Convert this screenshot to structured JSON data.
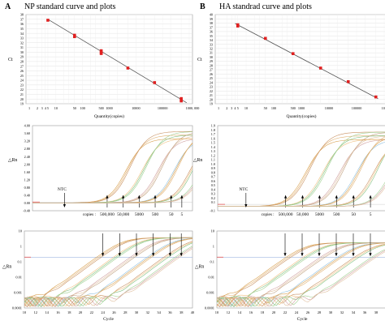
{
  "panels": [
    {
      "letter": "A",
      "title": "NP  standard curve and plots",
      "std_ylabel": "Ct",
      "std_xlabel": "Quantity(copies)",
      "std_xticks": [
        "1",
        "2",
        "3",
        "4",
        "5",
        "10",
        "20",
        "30",
        "50",
        "100",
        "200",
        "300",
        "500",
        "1000",
        "2000",
        "5000",
        "10000",
        "20000",
        "50000",
        "100000",
        "200000",
        "500000",
        "1000, 000"
      ],
      "lin_ylabel": "△Rn",
      "ntc_label": "NTC",
      "copies_label": "copies :",
      "log_ylabel": "△Rn",
      "cycle_label": "Cycle"
    },
    {
      "letter": "B",
      "title": "HA standrad curve and plots",
      "std_ylabel": "Ct",
      "std_xlabel": "Quantity(copies)",
      "std_xticks": [
        "1",
        "2",
        "3",
        "4",
        "5",
        "10",
        "20",
        "30",
        "50",
        "100",
        "200",
        "300",
        "500",
        "1000",
        "2000",
        "5000",
        "10000",
        "20000",
        "50000",
        "100000",
        "200000",
        "500000",
        "1000000"
      ],
      "lin_ylabel": "△Rn",
      "ntc_label": "NTC",
      "copies_label": "copies :",
      "log_ylabel": "△Rn",
      "cycle_label": "Cycle"
    }
  ],
  "colors": {
    "std_point": "#e02020",
    "fit_line": "#555555",
    "threshold": "#e05050",
    "curve_palette": [
      "#d8a050",
      "#e0b070",
      "#c89060",
      "#f0c080",
      "#80c080",
      "#a0d090",
      "#d0a0a0",
      "#e0c0a0",
      "#c0a080",
      "#90c0e0"
    ]
  },
  "chart_data": [
    {
      "type": "scatter",
      "title": "NP  standard curve and plots",
      "xlabel": "Quantity(copies)",
      "ylabel": "Ct",
      "xscale": "log",
      "xlim": [
        1,
        1000000
      ],
      "ylim": [
        19,
        38
      ],
      "yticks": [
        19,
        20,
        21,
        22,
        23,
        24,
        25,
        26,
        27,
        28,
        29,
        30,
        31,
        32,
        33,
        34,
        35,
        36,
        37,
        38
      ],
      "points": [
        {
          "x": 5,
          "y": 36.8
        },
        {
          "x": 50,
          "y": 33.6
        },
        {
          "x": 50,
          "y": 33.3
        },
        {
          "x": 500,
          "y": 30.3
        },
        {
          "x": 500,
          "y": 29.9
        },
        {
          "x": 500,
          "y": 29.7
        },
        {
          "x": 5000,
          "y": 26.6
        },
        {
          "x": 50000,
          "y": 23.5
        },
        {
          "x": 500000,
          "y": 20.1
        },
        {
          "x": 500000,
          "y": 19.6
        }
      ],
      "fit": [
        {
          "x": 5,
          "y": 37.0
        },
        {
          "x": 800000,
          "y": 19.2
        }
      ],
      "grid": true
    },
    {
      "type": "line",
      "title": "",
      "ylabel": "△Rn",
      "ylim": [
        -0.4,
        4.0
      ],
      "yticks": [
        -0.4,
        0.0,
        0.4,
        0.8,
        1.2,
        1.6,
        2.0,
        2.4,
        2.8,
        3.2,
        3.6,
        4.0
      ],
      "annotations": [
        {
          "label": "500,000",
          "x": 24
        },
        {
          "label": "50,000",
          "x": 27
        },
        {
          "label": "5000",
          "x": 30
        },
        {
          "label": "500",
          "x": 33
        },
        {
          "label": "50",
          "x": 36
        },
        {
          "label": "5",
          "x": 38
        }
      ],
      "ntc_x": 16
    },
    {
      "type": "line",
      "title": "",
      "xlabel": "Cycle",
      "ylabel": "△Rn",
      "yscale": "log",
      "ylim": [
        0.0001,
        10
      ],
      "yticks": [
        "10",
        "1",
        "0.1",
        "0.01",
        "0.001",
        "0.0001"
      ],
      "xlim": [
        10,
        40
      ],
      "xticks": [
        10,
        12,
        14,
        16,
        18,
        20,
        22,
        24,
        26,
        28,
        30,
        32,
        34,
        36,
        38,
        40
      ],
      "threshold": 0.2
    },
    {
      "type": "scatter",
      "title": "HA standrad curve and plots",
      "xlabel": "Quantity(copies)",
      "ylabel": "Ct",
      "xscale": "log",
      "xlim": [
        1,
        1000000
      ],
      "ylim": [
        19,
        40
      ],
      "yticks": [
        19,
        20,
        21,
        22,
        23,
        24,
        25,
        26,
        27,
        28,
        29,
        30,
        31,
        32,
        33,
        34,
        35,
        36,
        37,
        38,
        39,
        40
      ],
      "points": [
        {
          "x": 5,
          "y": 37.6
        },
        {
          "x": 5,
          "y": 37.3
        },
        {
          "x": 50,
          "y": 34.4
        },
        {
          "x": 500,
          "y": 30.8
        },
        {
          "x": 5000,
          "y": 27.4
        },
        {
          "x": 50000,
          "y": 24.2
        },
        {
          "x": 500000,
          "y": 20.6
        }
      ],
      "fit": [
        {
          "x": 4,
          "y": 37.9
        },
        {
          "x": 600000,
          "y": 20.2
        }
      ],
      "grid": true
    },
    {
      "type": "line",
      "title": "",
      "ylabel": "△Rn",
      "ylim": [
        -0.1,
        1.9
      ],
      "yticks": [
        -0.1,
        0.1,
        0.2,
        0.3,
        0.4,
        0.5,
        0.6,
        0.7,
        0.8,
        0.9,
        1.0,
        1.1,
        1.2,
        1.3,
        1.4,
        1.5,
        1.6,
        1.7,
        1.8,
        1.9
      ],
      "annotations": [
        {
          "label": "500,000",
          "x": 22
        },
        {
          "label": "50,000",
          "x": 25
        },
        {
          "label": "5000",
          "x": 28
        },
        {
          "label": "500",
          "x": 31
        },
        {
          "label": "50",
          "x": 34
        },
        {
          "label": "5",
          "x": 37
        }
      ],
      "ntc_x": 15
    },
    {
      "type": "line",
      "title": "",
      "xlabel": "Cycle",
      "ylabel": "△Rn",
      "yscale": "log",
      "ylim": [
        0.0001,
        10
      ],
      "yticks": [
        "10",
        "1",
        "0.1",
        "0.01",
        "0.001",
        "0.0001"
      ],
      "xlim": [
        10,
        40
      ],
      "xticks": [
        10,
        12,
        14,
        16,
        18,
        20,
        22,
        24,
        26,
        28,
        30,
        32,
        34,
        36,
        38,
        40
      ],
      "threshold": 0.2
    }
  ]
}
